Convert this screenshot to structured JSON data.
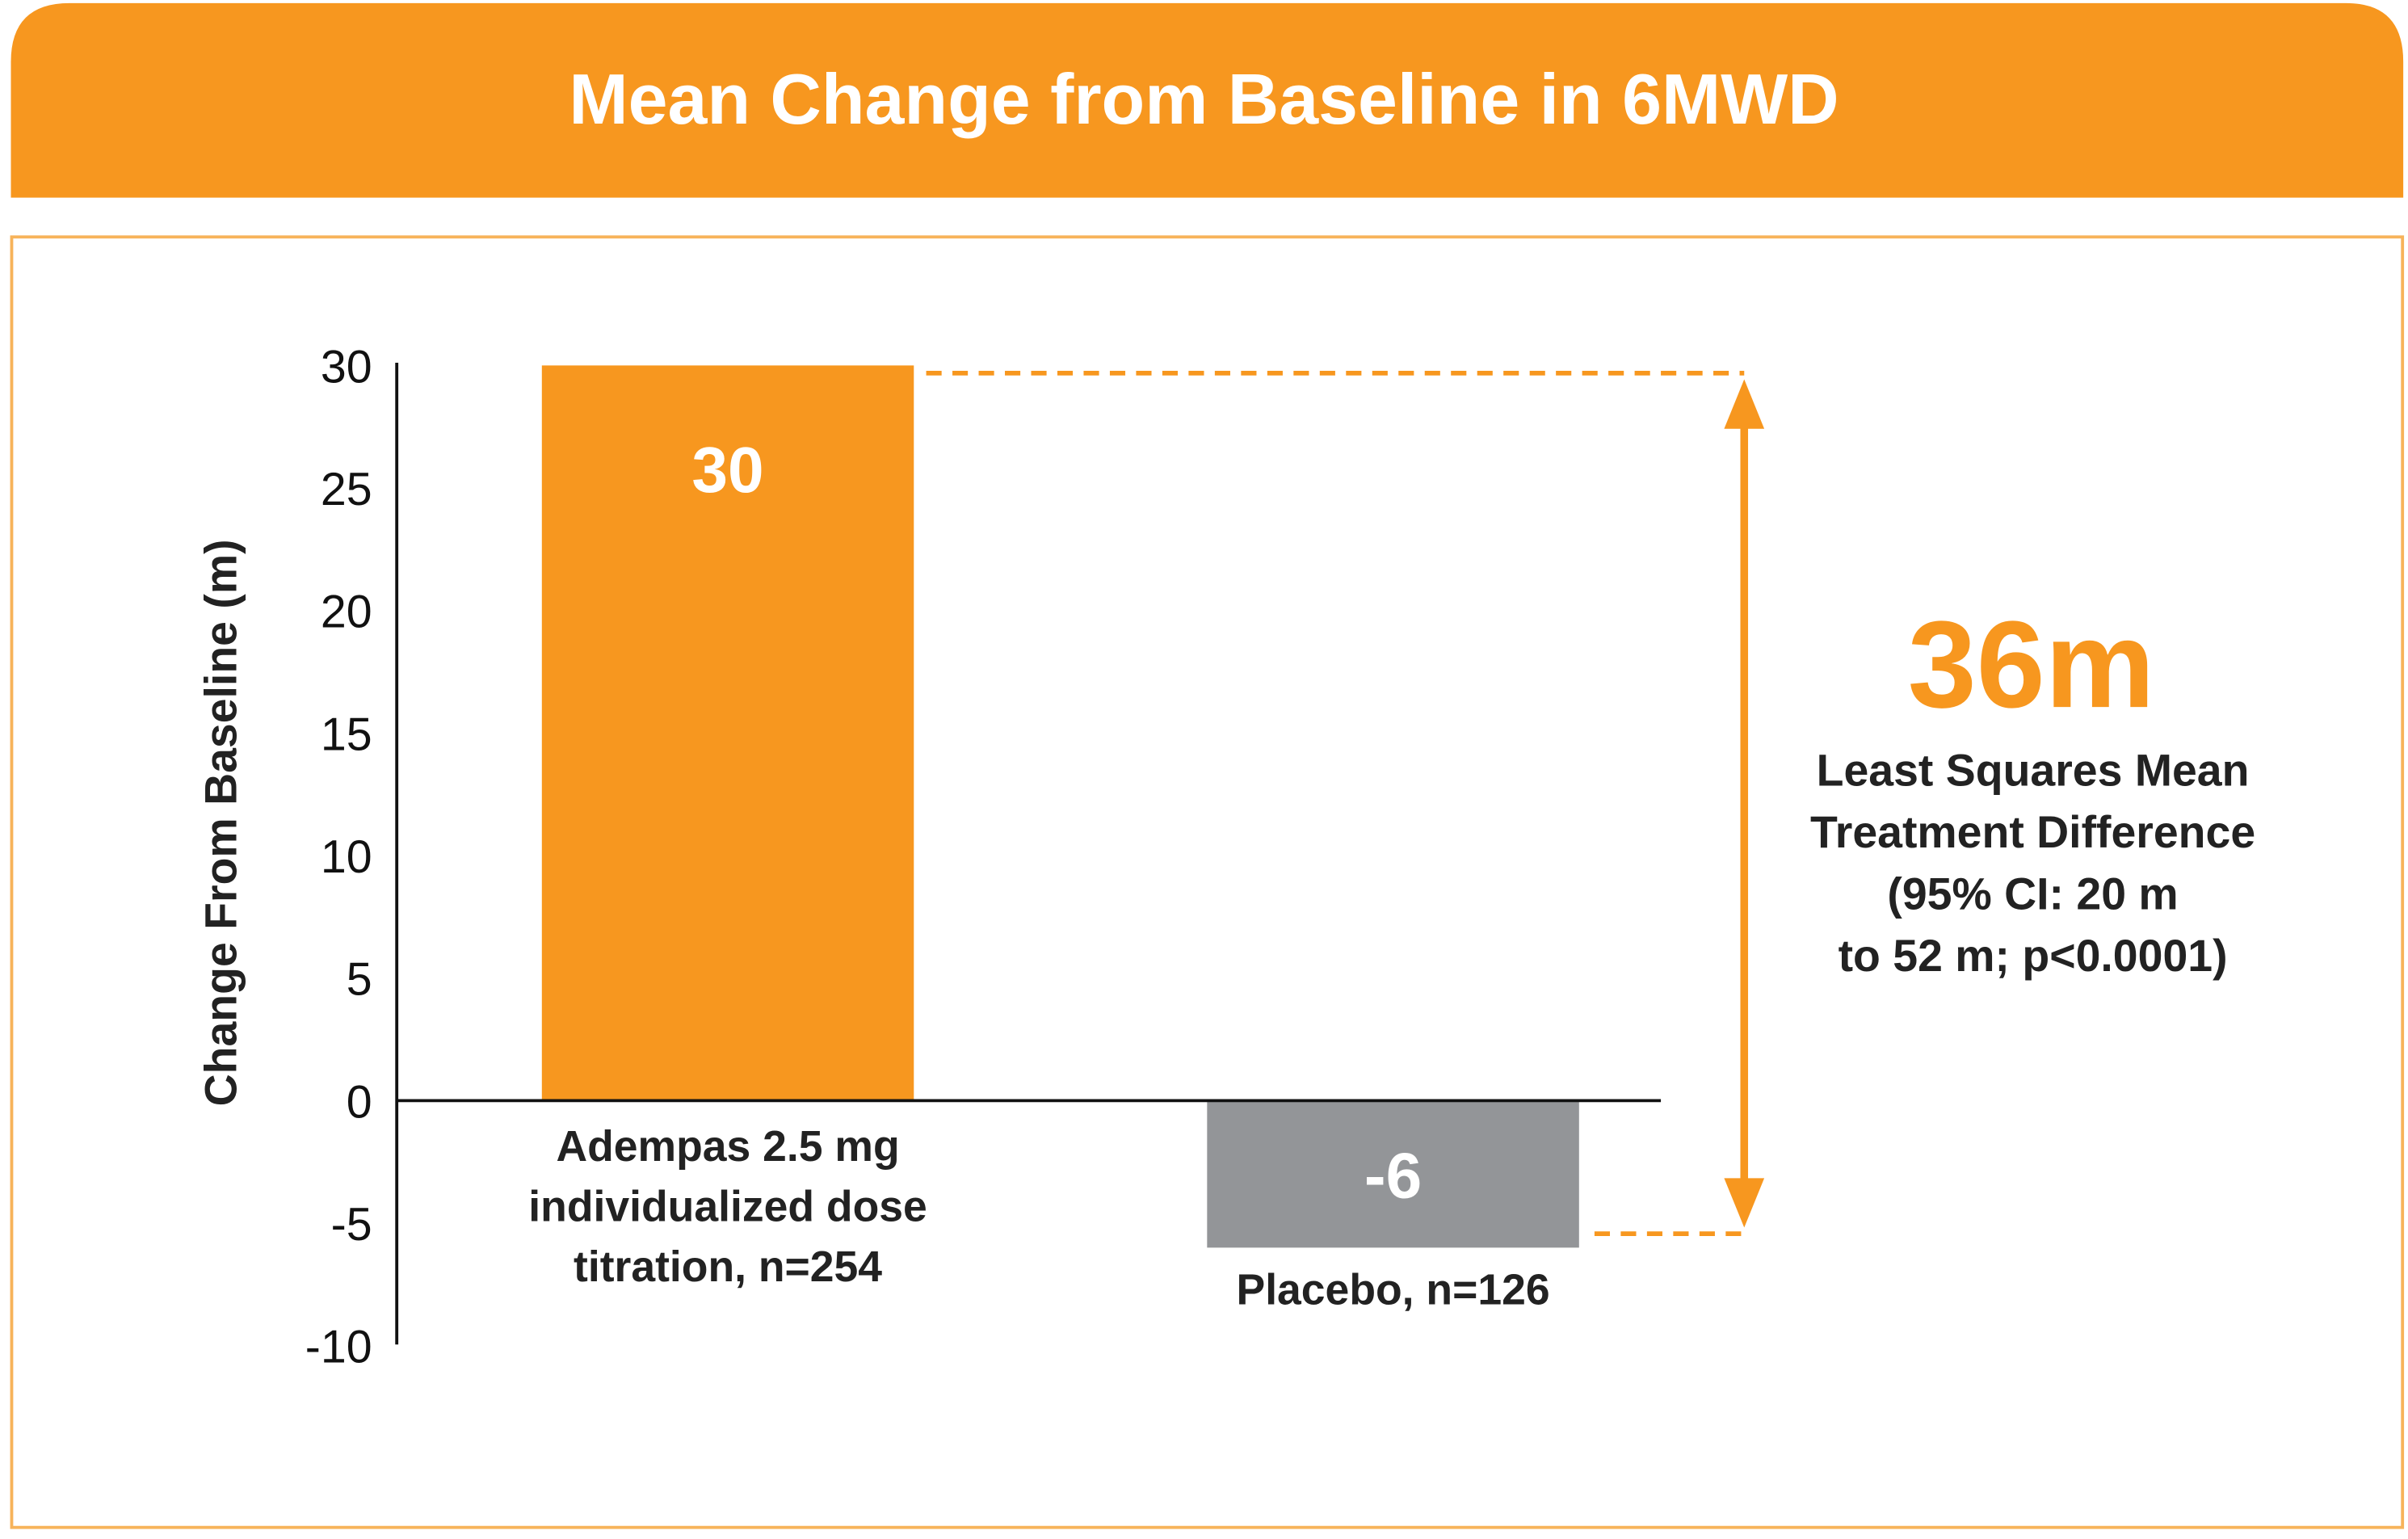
{
  "header": {
    "title": "Mean Change from Baseline in 6MWD"
  },
  "colors": {
    "accent": "#F7971F",
    "placebo": "#939598",
    "axis": "#111111"
  },
  "chart_data": {
    "type": "bar",
    "title": "Mean Change from Baseline in 6MWD",
    "xlabel": "",
    "ylabel": "Change From Baseline (m)",
    "ylim": [
      -10,
      30
    ],
    "yticks": [
      30,
      25,
      20,
      15,
      10,
      5,
      0,
      -5,
      -10
    ],
    "ytick_labels": [
      "30",
      "25",
      "20",
      "15",
      "10",
      "5",
      "0",
      "-5",
      "-10"
    ],
    "grid": false,
    "categories": [
      [
        "Adempas 2.5 mg",
        "individualized dose",
        "titration, n=254"
      ],
      [
        "Placebo, n=126"
      ]
    ],
    "values": [
      30,
      -6
    ],
    "data_labels": [
      "30",
      "-6"
    ],
    "bar_colors": [
      "#F7971F",
      "#939598"
    ],
    "annotation": {
      "value": "36m",
      "lines": [
        "Least Squares Mean",
        "Treatment Difference",
        "(95% CI: 20 m",
        "to 52 m; p<0.0001)"
      ],
      "from": 30,
      "to": -6
    }
  }
}
